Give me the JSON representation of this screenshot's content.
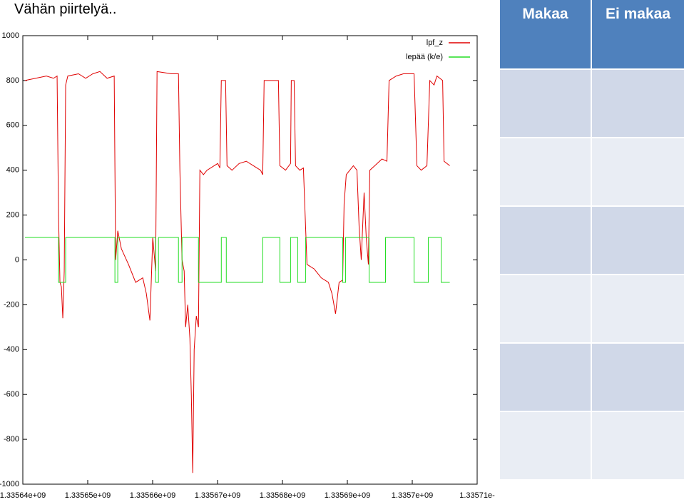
{
  "title": "Vähän piirtelyä..",
  "table": {
    "columns": [
      "Makaa",
      "Ei makaa"
    ]
  },
  "chart_data": {
    "type": "line",
    "legend": "upper right",
    "grid": false,
    "xlim": [
      1335640000,
      1335710000
    ],
    "ylim": [
      -1000,
      1000
    ],
    "xticks": [
      {
        "value": 1335640000,
        "label": "1.33564e+09"
      },
      {
        "value": 1335650000,
        "label": "1.33565e+09"
      },
      {
        "value": 1335660000,
        "label": "1.33566e+09"
      },
      {
        "value": 1335670000,
        "label": "1.33567e+09"
      },
      {
        "value": 1335680000,
        "label": "1.33568e+09"
      },
      {
        "value": 1335690000,
        "label": "1.33569e+09"
      },
      {
        "value": 1335700000,
        "label": "1.3357e+09"
      },
      {
        "value": 1335710000,
        "label": "1.33571e-"
      }
    ],
    "yticks": [
      -1000,
      -800,
      -600,
      -400,
      -200,
      0,
      200,
      400,
      600,
      800,
      1000
    ],
    "series": [
      {
        "name": "lpf_z",
        "color": "#e00000",
        "x": [
          1335640330,
          1335641980,
          1335643630,
          1335644730,
          1335645280,
          1335645500,
          1335645720,
          1335645940,
          1335646160,
          1335646380,
          1335646600,
          1335646930,
          1335648580,
          1335649680,
          1335650780,
          1335651880,
          1335652980,
          1335654080,
          1335654300,
          1335654630,
          1335655180,
          1335656280,
          1335657380,
          1335658480,
          1335659030,
          1335659580,
          1335660020,
          1335660460,
          1335660680,
          1335661780,
          1335662880,
          1335663980,
          1335664200,
          1335664530,
          1335664860,
          1335665080,
          1335665410,
          1335665740,
          1335665960,
          1335666180,
          1335666400,
          1335666730,
          1335667060,
          1335667280,
          1335667830,
          1335668380,
          1335669480,
          1335670030,
          1335670360,
          1335670580,
          1335671240,
          1335671460,
          1335672230,
          1335673330,
          1335674430,
          1335675530,
          1335676630,
          1335676960,
          1335677180,
          1335678280,
          1335679380,
          1335679600,
          1335680480,
          1335681250,
          1335681360,
          1335681800,
          1335682020,
          1335682680,
          1335683230,
          1335683560,
          1335683780,
          1335684880,
          1335685980,
          1335687080,
          1335687630,
          1335688180,
          1335688730,
          1335689280,
          1335689500,
          1335689830,
          1335690380,
          1335690930,
          1335691480,
          1335691810,
          1335692140,
          1335692580,
          1335692910,
          1335693240,
          1335693460,
          1335694230,
          1335695330,
          1335696100,
          1335696430,
          1335697530,
          1335698630,
          1335700280,
          1335700720,
          1335701380,
          1335702260,
          1335702700,
          1335703360,
          1335703800,
          1335704680,
          1335704900,
          1335705780
        ],
        "values": [
          800,
          810,
          820,
          810,
          820,
          200,
          -100,
          -120,
          -260,
          -50,
          780,
          820,
          830,
          810,
          830,
          840,
          810,
          820,
          0,
          130,
          50,
          -20,
          -100,
          -80,
          -150,
          -270,
          100,
          -50,
          840,
          835,
          830,
          830,
          400,
          0,
          -50,
          -300,
          -200,
          -350,
          -600,
          -950,
          -400,
          -250,
          -300,
          400,
          380,
          400,
          420,
          430,
          410,
          800,
          800,
          420,
          400,
          430,
          440,
          420,
          400,
          380,
          800,
          800,
          800,
          420,
          400,
          430,
          800,
          800,
          420,
          400,
          410,
          150,
          -20,
          -40,
          -80,
          -100,
          -150,
          -240,
          -100,
          -90,
          250,
          380,
          400,
          420,
          400,
          150,
          0,
          300,
          100,
          -20,
          400,
          420,
          450,
          440,
          800,
          820,
          830,
          830,
          420,
          400,
          420,
          800,
          780,
          820,
          800,
          440,
          420
        ]
      },
      {
        "name": "lepää (k/e)",
        "color": "#22dd22",
        "x": [
          1335640330,
          1335645500,
          1335645500,
          1335646600,
          1335646600,
          1335654190,
          1335654190,
          1335654630,
          1335654630,
          1335660460,
          1335660460,
          1335660900,
          1335660900,
          1335663980,
          1335663980,
          1335664530,
          1335664530,
          1335667060,
          1335667060,
          1335670580,
          1335670580,
          1335671350,
          1335671350,
          1335676960,
          1335676960,
          1335679600,
          1335679600,
          1335681250,
          1335681250,
          1335682350,
          1335682350,
          1335683560,
          1335683560,
          1335689280,
          1335689280,
          1335689720,
          1335689720,
          1335693350,
          1335693350,
          1335695880,
          1335695880,
          1335700280,
          1335700280,
          1335702480,
          1335702480,
          1335704460,
          1335704460,
          1335705780
        ],
        "values": [
          100,
          100,
          -100,
          -100,
          100,
          100,
          -100,
          -100,
          100,
          100,
          -100,
          -100,
          100,
          100,
          -100,
          -100,
          100,
          100,
          -100,
          -100,
          100,
          100,
          -100,
          -100,
          100,
          100,
          -100,
          -100,
          100,
          100,
          -100,
          -100,
          100,
          100,
          -100,
          -100,
          100,
          100,
          -100,
          -100,
          100,
          100,
          -100,
          -100,
          100,
          100,
          -100,
          -100
        ]
      }
    ]
  }
}
